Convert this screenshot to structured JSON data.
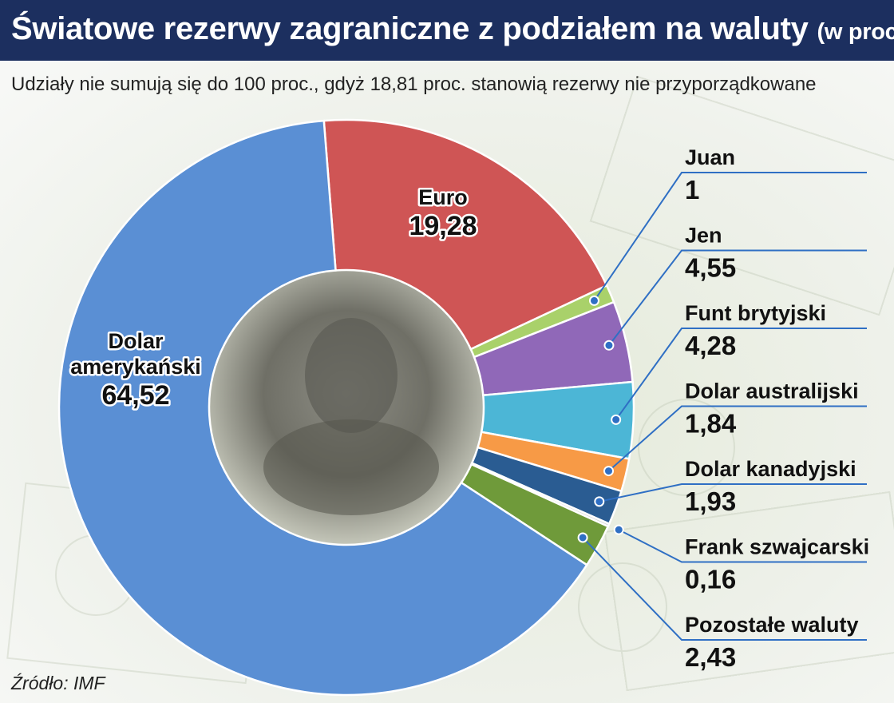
{
  "title": "Światowe rezerwy zagraniczne z podziałem na waluty",
  "title_unit": "(w proc.)",
  "subtitle": "Udziały nie sumują się do 100 proc., gdyż 18,81 proc. stanowią rezerwy nie przyporządkowane",
  "source": "Źródło: IMF",
  "chart_data": {
    "type": "pie",
    "variant": "donut",
    "unassigned_share": "18,81",
    "slices": [
      {
        "name": "Euro",
        "value": 19.28,
        "label": "19,28",
        "color": "#cf5555"
      },
      {
        "name": "Juan",
        "value": 1,
        "label": "1",
        "color": "#a9d16a"
      },
      {
        "name": "Jen",
        "value": 4.55,
        "label": "4,55",
        "color": "#9068b8"
      },
      {
        "name": "Funt brytyjski",
        "value": 4.28,
        "label": "4,28",
        "color": "#4cb6d6"
      },
      {
        "name": "Dolar australijski",
        "value": 1.84,
        "label": "1,84",
        "color": "#f79a46"
      },
      {
        "name": "Dolar kanadyjski",
        "value": 1.93,
        "label": "1,93",
        "color": "#2a5c92"
      },
      {
        "name": "Frank szwajcarski",
        "value": 0.16,
        "label": "0,16",
        "color": "#d9d9d9"
      },
      {
        "name": "Pozostałe waluty",
        "value": 2.43,
        "label": "2,43",
        "color": "#6f9a3a"
      },
      {
        "name": "Dolar amerykański",
        "value": 64.52,
        "label": "64,52",
        "color": "#5a8fd4"
      }
    ],
    "inside_labels": [
      {
        "name_lines": [
          "Euro"
        ],
        "value": "19,28"
      },
      {
        "name_lines": [
          "Dolar",
          "amerykański"
        ],
        "value": "64,52"
      }
    ]
  }
}
